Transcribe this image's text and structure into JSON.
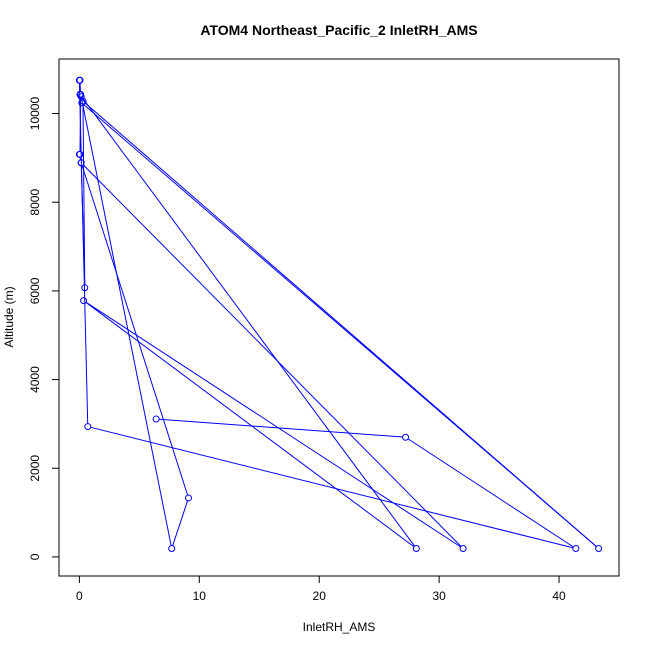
{
  "chart_data": {
    "type": "line",
    "title": "ATOM4 Northeast_Pacific_2 InletRH_AMS",
    "xlabel": "InletRH_AMS",
    "ylabel": "Altitude (m)",
    "xlim": [
      -1.7,
      45.0
    ],
    "ylim": [
      -430,
      11230
    ],
    "x_ticks": [
      0,
      10,
      20,
      30,
      40
    ],
    "y_ticks": [
      0,
      2000,
      4000,
      6000,
      8000,
      10000
    ],
    "grid": false,
    "legend": "none",
    "color": "#0000ff",
    "marker": "open-circle",
    "series": [
      {
        "x": [
          0.05,
          0.1,
          0.15,
          7.7,
          9.1,
          0.15,
          0.0,
          0.05,
          0.1,
          0.2,
          43.3,
          0.3,
          0.45,
          0.15,
          32.0,
          0.35,
          28.1,
          0.05,
          0.0,
          0.7,
          41.4,
          27.2,
          6.4
        ],
        "y": [
          10750,
          10430,
          10380,
          190,
          1330,
          8890,
          9080,
          9080,
          10430,
          10240,
          190,
          10280,
          6070,
          8890,
          190,
          5780,
          190,
          10430,
          10750,
          2940,
          190,
          2700,
          3110
        ]
      }
    ]
  }
}
